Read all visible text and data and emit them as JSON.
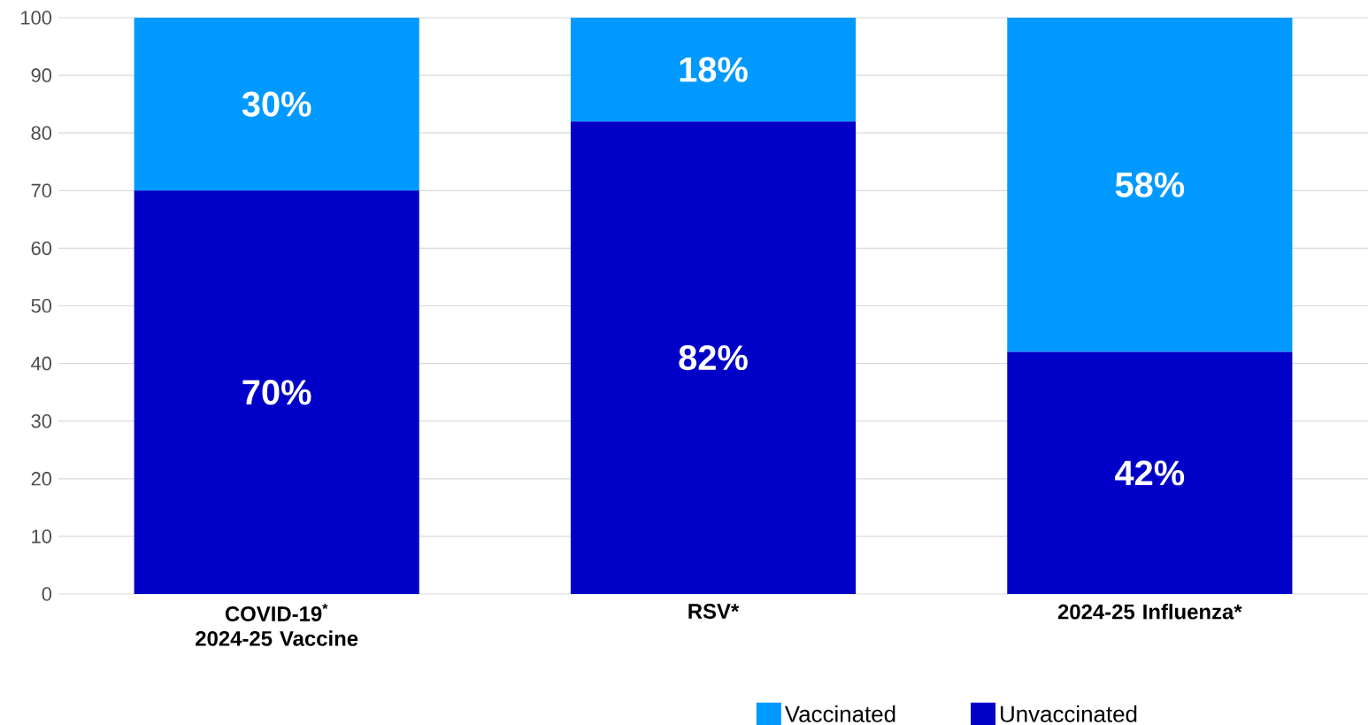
{
  "chart_data": {
    "type": "bar",
    "stacked": true,
    "categories": [
      "COVID-19$^{*}$ 2024-25 Vaccine",
      "RSV*",
      "2024-25 Influenza*"
    ],
    "series": [
      {
        "name": "Unvaccinated",
        "color": "#0000c8",
        "values": [
          70,
          82,
          42
        ],
        "value_labels": [
          "70%",
          "82%",
          "42%"
        ]
      },
      {
        "name": "Vaccinated",
        "color": "#0099ff",
        "values": [
          30,
          18,
          58
        ],
        "value_labels": [
          "30%",
          "18%",
          "58%"
        ]
      }
    ],
    "ylim": [
      0,
      100
    ],
    "yticks": [
      0,
      10,
      20,
      30,
      40,
      50,
      60,
      70,
      80,
      90,
      100
    ],
    "grid": "y",
    "legend": "bottom"
  }
}
